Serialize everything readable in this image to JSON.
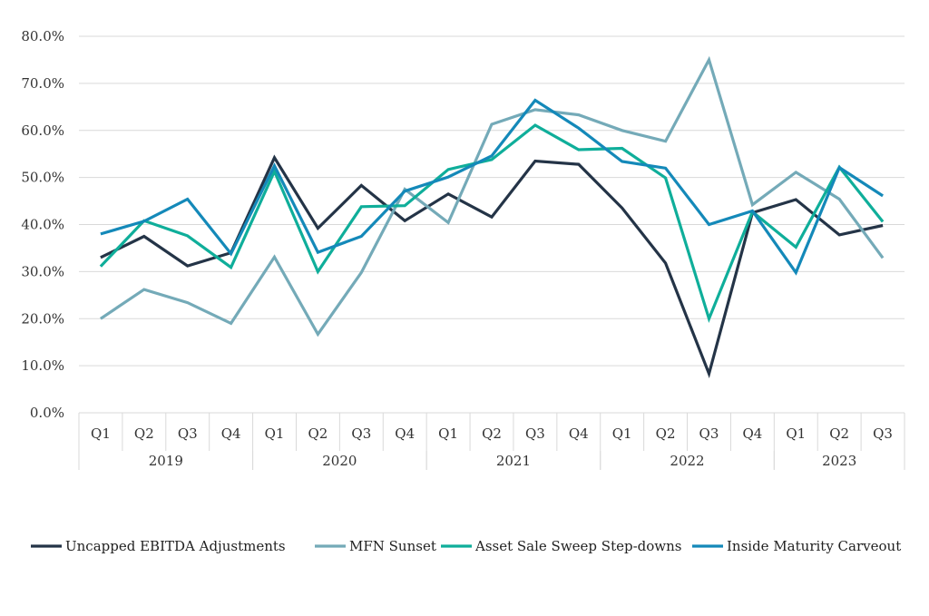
{
  "chart_data": {
    "type": "line",
    "title": "",
    "xlabel": "",
    "ylabel": "",
    "ylim": [
      0,
      80
    ],
    "y_ticks": [
      "0.0%",
      "10.0%",
      "20.0%",
      "30.0%",
      "40.0%",
      "50.0%",
      "60.0%",
      "70.0%",
      "80.0%"
    ],
    "grid": "horizontal",
    "legend_position": "bottom",
    "x": [
      {
        "quarter": "Q1",
        "year": "2019"
      },
      {
        "quarter": "Q2",
        "year": "2019"
      },
      {
        "quarter": "Q3",
        "year": "2019"
      },
      {
        "quarter": "Q4",
        "year": "2019"
      },
      {
        "quarter": "Q1",
        "year": "2020"
      },
      {
        "quarter": "Q2",
        "year": "2020"
      },
      {
        "quarter": "Q3",
        "year": "2020"
      },
      {
        "quarter": "Q4",
        "year": "2020"
      },
      {
        "quarter": "Q1",
        "year": "2021"
      },
      {
        "quarter": "Q2",
        "year": "2021"
      },
      {
        "quarter": "Q3",
        "year": "2021"
      },
      {
        "quarter": "Q4",
        "year": "2021"
      },
      {
        "quarter": "Q1",
        "year": "2022"
      },
      {
        "quarter": "Q2",
        "year": "2022"
      },
      {
        "quarter": "Q3",
        "year": "2022"
      },
      {
        "quarter": "Q4",
        "year": "2022"
      },
      {
        "quarter": "Q1",
        "year": "2023"
      },
      {
        "quarter": "Q2",
        "year": "2023"
      },
      {
        "quarter": "Q3",
        "year": "2023"
      }
    ],
    "years": [
      "2019",
      "2020",
      "2021",
      "2022",
      "2023"
    ],
    "series": [
      {
        "name": "Uncapped EBITDA Adjustments",
        "color": "#243447",
        "values": [
          33.0,
          37.5,
          31.2,
          34.0,
          54.2,
          39.2,
          48.3,
          40.8,
          46.5,
          41.6,
          53.5,
          52.8,
          43.5,
          31.8,
          8.3,
          42.5,
          45.3,
          37.8,
          39.8
        ]
      },
      {
        "name": "MFN Sunset",
        "color": "#74aab8",
        "values": [
          20.0,
          26.2,
          23.4,
          19.0,
          33.1,
          16.7,
          29.8,
          47.5,
          40.4,
          61.3,
          64.4,
          63.3,
          60.0,
          57.7,
          75.0,
          44.2,
          51.1,
          45.4,
          32.9
        ]
      },
      {
        "name": "Asset Sale Sweep Step-downs",
        "color": "#0fae9a",
        "values": [
          31.1,
          40.8,
          37.6,
          30.9,
          51.3,
          30.0,
          43.8,
          44.0,
          51.7,
          53.8,
          61.1,
          55.9,
          56.2,
          49.9,
          20.0,
          42.7,
          35.2,
          52.2,
          40.6
        ]
      },
      {
        "name": "Inside Maturity Carveout",
        "color": "#1489b9",
        "values": [
          38.0,
          40.7,
          45.4,
          33.8,
          52.5,
          34.1,
          37.5,
          47.1,
          50.1,
          54.6,
          66.4,
          60.5,
          53.4,
          52.0,
          40.0,
          42.9,
          29.8,
          52.1,
          46.1
        ]
      }
    ]
  }
}
